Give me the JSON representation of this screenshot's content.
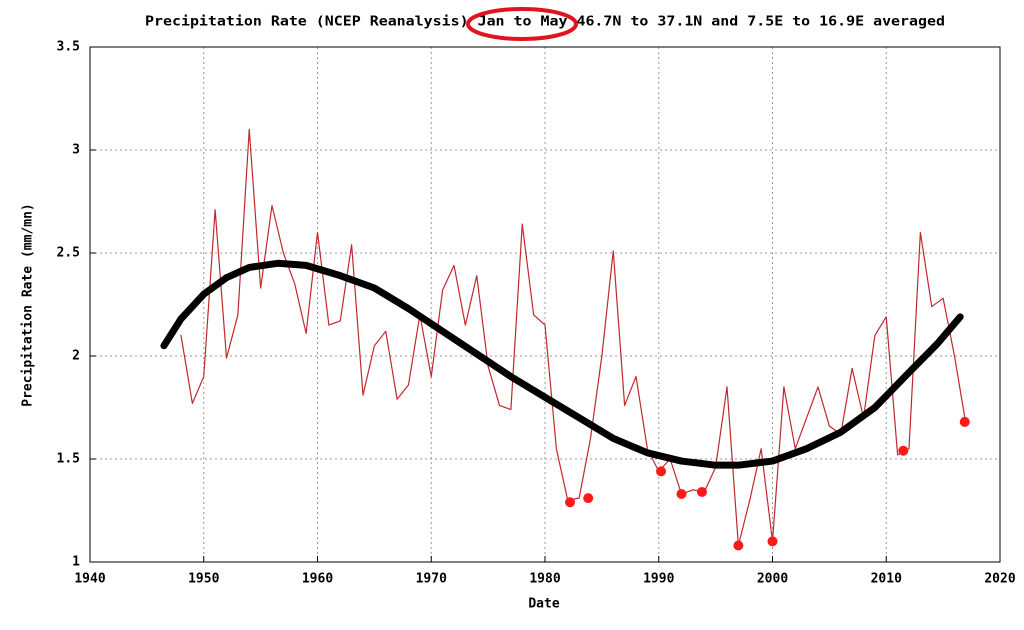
{
  "chart_data": {
    "type": "line",
    "title": "Precipitation Rate (NCEP Reanalysis) Jan to May 46.7N to 37.1N and 7.5E to 16.9E averaged",
    "xlabel": "Date",
    "ylabel": "Precipitation Rate (mm/mn)",
    "xlim": [
      1940,
      2020
    ],
    "xticks": [
      1940,
      1950,
      1960,
      1970,
      1980,
      1990,
      2000,
      2010,
      2020
    ],
    "ylim": [
      1,
      3.5
    ],
    "yticks": [
      1,
      1.5,
      2,
      2.5,
      3,
      3.5
    ],
    "grid": true,
    "series": [
      {
        "color": "#c0282d",
        "style": "thin",
        "x": [
          1948,
          1949,
          1950,
          1951,
          1952,
          1953,
          1954,
          1955,
          1956,
          1957,
          1958,
          1959,
          1960,
          1961,
          1962,
          1963,
          1964,
          1965,
          1966,
          1967,
          1968,
          1969,
          1970,
          1971,
          1972,
          1973,
          1974,
          1975,
          1976,
          1977,
          1978,
          1979,
          1980,
          1981,
          1982,
          1983,
          1984,
          1985,
          1986,
          1987,
          1988,
          1989,
          1990,
          1991,
          1992,
          1993,
          1994,
          1995,
          1996,
          1997,
          1998,
          1999,
          2000,
          2001,
          2002,
          2003,
          2004,
          2005,
          2006,
          2007,
          2008,
          2009,
          2010,
          2011,
          2012,
          2013,
          2014,
          2015,
          2016,
          2017
        ],
        "values": [
          2.1,
          1.77,
          1.9,
          2.71,
          1.99,
          2.2,
          3.1,
          2.33,
          2.73,
          2.5,
          2.35,
          2.11,
          2.6,
          2.15,
          2.17,
          2.54,
          1.81,
          2.05,
          2.12,
          1.79,
          1.86,
          2.2,
          1.9,
          2.32,
          2.44,
          2.15,
          2.39,
          1.95,
          1.76,
          1.74,
          2.64,
          2.2,
          2.15,
          1.55,
          1.3,
          1.31,
          1.6,
          2.0,
          2.51,
          1.76,
          1.9,
          1.55,
          1.44,
          1.5,
          1.33,
          1.35,
          1.34,
          1.46,
          1.85,
          1.08,
          1.3,
          1.55,
          1.1,
          1.85,
          1.55,
          1.7,
          1.85,
          1.66,
          1.62,
          1.94,
          1.7,
          2.1,
          2.19,
          1.52,
          1.55,
          2.6,
          2.24,
          2.28,
          2.0,
          1.67
        ]
      },
      {
        "color": "#000000",
        "style": "thick",
        "x": [
          1946.5,
          1948,
          1950,
          1952,
          1954,
          1956.5,
          1959,
          1962,
          1965,
          1968,
          1971,
          1974,
          1977,
          1980,
          1983,
          1986,
          1989,
          1992,
          1995,
          1997,
          2000,
          2003,
          2006,
          2009,
          2012,
          2014.5,
          2016.5
        ],
        "values": [
          2.05,
          2.18,
          2.3,
          2.38,
          2.43,
          2.45,
          2.44,
          2.39,
          2.33,
          2.23,
          2.12,
          2.01,
          1.9,
          1.8,
          1.7,
          1.6,
          1.53,
          1.49,
          1.47,
          1.47,
          1.49,
          1.55,
          1.63,
          1.75,
          1.92,
          2.06,
          2.19
        ]
      },
      {
        "color": "#ff1a1a",
        "style": "dots",
        "x": [
          1982.2,
          1983.8,
          1990.2,
          1992,
          1993.8,
          1997,
          2000,
          2011.5,
          2016.9
        ],
        "values": [
          1.29,
          1.31,
          1.44,
          1.33,
          1.34,
          1.08,
          1.1,
          1.54,
          1.68
        ]
      }
    ]
  }
}
